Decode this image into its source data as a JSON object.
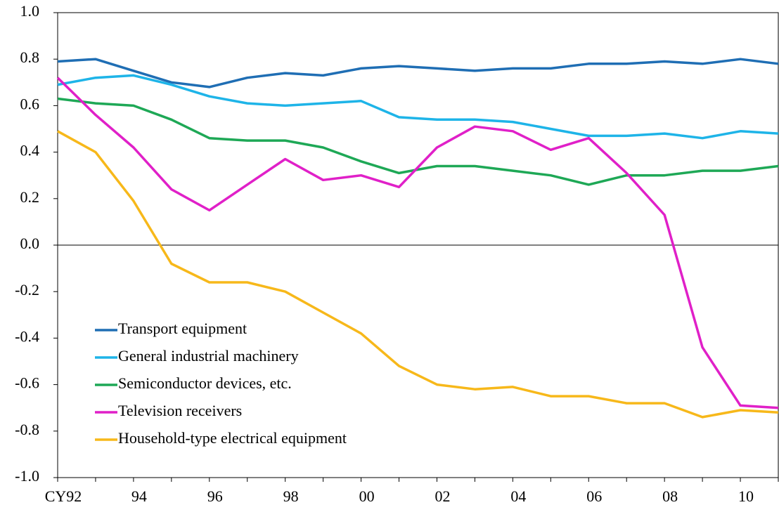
{
  "chart_data": {
    "type": "line",
    "categories": [
      "CY92",
      null,
      "94",
      null,
      "96",
      null,
      "98",
      null,
      "00",
      null,
      "02",
      null,
      "04",
      null,
      "06",
      null,
      "08",
      null,
      "10",
      null
    ],
    "ylim": [
      -1.0,
      1.0
    ],
    "yticks": [
      {
        "value": 1.0,
        "label": "1.0"
      },
      0.8,
      0.6,
      0.4,
      0.2,
      {
        "value": 0.0,
        "label": "0.0"
      },
      -0.2,
      -0.4,
      -0.6,
      -0.8,
      {
        "value": -1.0,
        "label": "-1.0"
      }
    ],
    "grid": false,
    "legend": "lower left",
    "series": [
      {
        "name": "Transport equipment",
        "color": "#1f6eb4",
        "values": [
          0.79,
          0.8,
          0.75,
          0.7,
          0.68,
          0.72,
          0.74,
          0.73,
          0.76,
          0.77,
          0.76,
          0.75,
          0.76,
          0.76,
          0.78,
          0.78,
          0.79,
          0.78,
          0.8,
          0.78
        ]
      },
      {
        "name": "General industrial machinery",
        "color": "#1eb4e8",
        "values": [
          0.69,
          0.72,
          0.73,
          0.69,
          0.64,
          0.61,
          0.6,
          0.61,
          0.62,
          0.55,
          0.54,
          0.54,
          0.53,
          0.5,
          0.47,
          0.47,
          0.48,
          0.46,
          0.49,
          0.48
        ]
      },
      {
        "name": "Semiconductor devices, etc.",
        "color": "#1ea856",
        "values": [
          0.63,
          0.61,
          0.6,
          0.54,
          0.46,
          0.45,
          0.45,
          0.42,
          0.36,
          0.31,
          0.34,
          0.34,
          0.32,
          0.3,
          0.26,
          0.3,
          0.3,
          0.32,
          0.32,
          0.34
        ]
      },
      {
        "name": "Television receivers",
        "color": "#e020c8",
        "values": [
          0.72,
          0.56,
          0.42,
          0.24,
          0.15,
          0.26,
          0.37,
          0.28,
          0.3,
          0.25,
          0.42,
          0.51,
          0.49,
          0.41,
          0.46,
          0.31,
          0.13,
          -0.44,
          -0.69,
          -0.7
        ]
      },
      {
        "name": "Household-type electrical equipment",
        "color": "#f7b81a",
        "values": [
          0.49,
          0.4,
          0.19,
          -0.08,
          -0.16,
          -0.16,
          -0.2,
          -0.29,
          -0.38,
          -0.52,
          -0.6,
          -0.62,
          -0.61,
          -0.65,
          -0.65,
          -0.68,
          -0.68,
          -0.74,
          -0.71,
          -0.72
        ]
      }
    ]
  }
}
